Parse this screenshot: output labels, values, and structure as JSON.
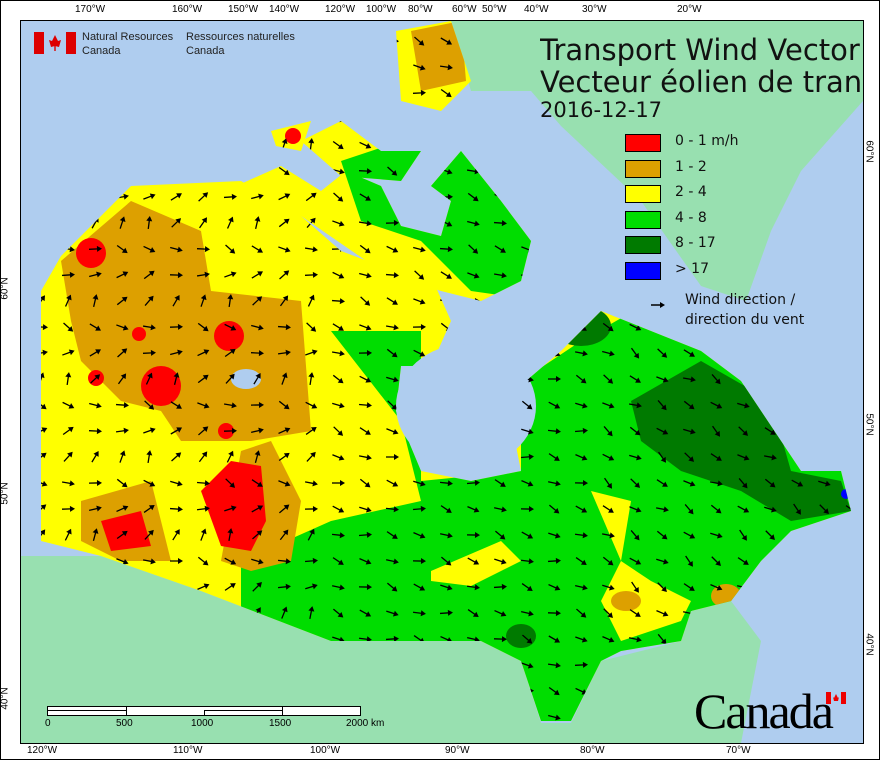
{
  "header": {
    "org_en_line1": "Natural Resources",
    "org_en_line2": "Canada",
    "org_fr_line1": "Ressources naturelles",
    "org_fr_line2": "Canada"
  },
  "title": {
    "en": "Transport Wind Vector",
    "fr": "Vecteur éolien de transport",
    "date": "2016-12-17"
  },
  "legend": {
    "items": [
      {
        "label": "0 - 1 m/h",
        "color": "#ff0000"
      },
      {
        "label": "1 - 2",
        "color": "#dda000"
      },
      {
        "label": "2 - 4",
        "color": "#ffff00"
      },
      {
        "label": "4 - 8",
        "color": "#00dd00"
      },
      {
        "label": "8 - 17",
        "color": "#007a00"
      },
      {
        "label": "> 17",
        "color": "#0000ff"
      }
    ],
    "wind_line1": "Wind direction /",
    "wind_line2": "direction du vent",
    "wind_icon": "arrow-icon"
  },
  "axes": {
    "top": [
      "170°W",
      "160°W",
      "150°W",
      "140°W",
      "120°W",
      "100°W",
      "80°W",
      "60°W",
      "50°W",
      "40°W",
      "30°W",
      "20°W"
    ],
    "bottom": [
      "120°W",
      "110°W",
      "100°W",
      "90°W",
      "80°W",
      "70°W"
    ],
    "left": [
      "60°N",
      "50°N",
      "40°N"
    ],
    "right": [
      "60°N",
      "50°N",
      "40°N"
    ]
  },
  "scale_bar": {
    "labels": [
      "0",
      "500",
      "1000",
      "1500",
      "2000 km"
    ]
  },
  "wordmark": "Canada",
  "colors": {
    "water": "#afcdef",
    "foreign_land": "#98e0b0"
  }
}
